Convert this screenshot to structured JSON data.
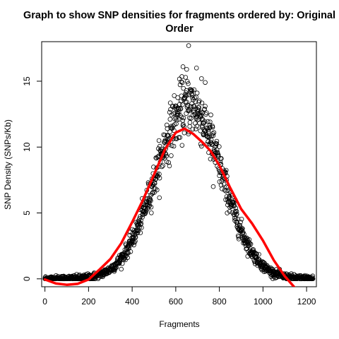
{
  "chart_data": {
    "type": "scatter",
    "title_lines": [
      "Graph to show SNP densities for fragments ordered by: Original",
      "Order"
    ],
    "xlabel": "Fragments",
    "ylabel": "SNP Density (SNPs/Kb)",
    "xlim": [
      -15,
      1245
    ],
    "ylim": [
      -0.6,
      18.0
    ],
    "x_ticks": [
      0,
      200,
      400,
      600,
      800,
      1000,
      1200
    ],
    "y_ticks": [
      0,
      5,
      10,
      15
    ],
    "grid": false,
    "legend": "none",
    "points": {
      "n": 1230,
      "shape": "open-circle",
      "color": "#000000",
      "peak_x": 660,
      "peak_y": 13.2,
      "spread_sd": 150,
      "notable_outliers": [
        [
          659,
          17.7
        ],
        [
          633,
          16.1
        ],
        [
          650,
          15.9
        ],
        [
          695,
          16.0
        ],
        [
          718,
          15.2
        ],
        [
          772,
          7.0
        ],
        [
          735,
          13.1
        ]
      ]
    },
    "fit_line": {
      "color": "#ff0000",
      "x": [
        0,
        50,
        100,
        150,
        200,
        250,
        300,
        350,
        400,
        450,
        500,
        550,
        600,
        640,
        680,
        720,
        760,
        800,
        850,
        900,
        950,
        1000,
        1050,
        1100,
        1150
      ],
      "y": [
        -0.05,
        -0.35,
        -0.45,
        -0.38,
        -0.05,
        0.7,
        1.5,
        2.7,
        4.3,
        6.0,
        7.9,
        9.8,
        11.1,
        11.4,
        11.0,
        10.4,
        9.7,
        8.6,
        6.9,
        5.3,
        4.2,
        2.9,
        1.4,
        0.2,
        -0.75
      ]
    }
  }
}
